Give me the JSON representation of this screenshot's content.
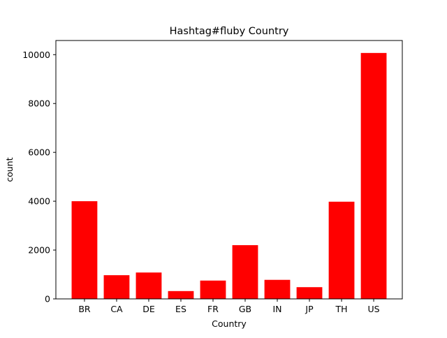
{
  "chart_data": {
    "type": "bar",
    "title": "Hashtag#fluby Country",
    "xlabel": "Country",
    "ylabel": "count",
    "categories": [
      "BR",
      "CA",
      "DE",
      "ES",
      "FR",
      "GB",
      "IN",
      "JP",
      "TH",
      "US"
    ],
    "values": [
      4000,
      970,
      1080,
      320,
      750,
      2200,
      780,
      480,
      3980,
      10070
    ],
    "ylim": [
      0,
      10580
    ],
    "yticks": [
      0,
      2000,
      4000,
      6000,
      8000,
      10000
    ],
    "grid": false,
    "bar_color": "#ff0000"
  }
}
